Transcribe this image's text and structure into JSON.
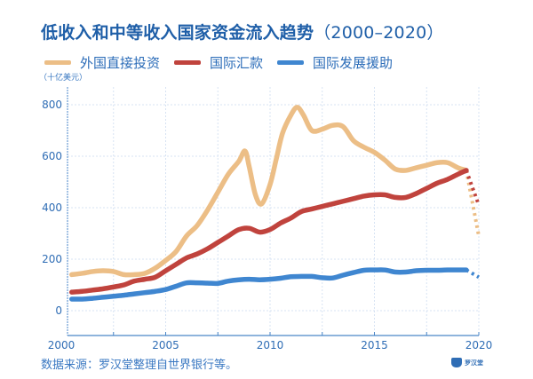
{
  "chart_data": {
    "type": "line",
    "title": "低收入和中等收入国家资金流入趋势（2000–2020）",
    "ylabel": "（十亿美元）",
    "xlabel": "",
    "xlim": [
      2000,
      2020
    ],
    "ylim": [
      -100,
      880
    ],
    "xticks": [
      2000,
      2005,
      2010,
      2015,
      2020
    ],
    "yticks": [
      0,
      200,
      400,
      600,
      800
    ],
    "grid": true,
    "legend_position": "top-left",
    "series": [
      {
        "name": "外国直接投资",
        "color": "#ecbe86",
        "x": [
          2000.5,
          2001,
          2001.5,
          2002,
          2002.5,
          2003,
          2003.5,
          2004,
          2004.5,
          2005,
          2005.5,
          2006,
          2006.5,
          2007,
          2007.5,
          2008,
          2008.5,
          2008.8,
          2009,
          2009.3,
          2009.6,
          2010,
          2010.3,
          2010.6,
          2011,
          2011.3,
          2011.6,
          2012,
          2012.5,
          2013,
          2013.5,
          2014,
          2014.5,
          2015,
          2015.5,
          2016,
          2016.5,
          2017,
          2017.5,
          2018,
          2018.5,
          2019,
          2019.4
        ],
        "values": [
          140,
          145,
          152,
          155,
          152,
          140,
          140,
          145,
          165,
          195,
          230,
          290,
          330,
          390,
          460,
          530,
          580,
          620,
          560,
          450,
          415,
          490,
          590,
          690,
          760,
          790,
          760,
          700,
          705,
          720,
          715,
          660,
          635,
          615,
          585,
          550,
          545,
          555,
          565,
          575,
          575,
          555,
          545
        ],
        "projection": {
          "x": [
            2019.4,
            2020
          ],
          "values": [
            545,
            290
          ]
        }
      },
      {
        "name": "国际汇款",
        "color": "#c0433d",
        "x": [
          2000.5,
          2001,
          2001.5,
          2002,
          2002.5,
          2003,
          2003.5,
          2004,
          2004.5,
          2005,
          2005.5,
          2006,
          2006.5,
          2007,
          2007.5,
          2008,
          2008.5,
          2009,
          2009.5,
          2010,
          2010.5,
          2011,
          2011.5,
          2012,
          2012.5,
          2013,
          2013.5,
          2014,
          2014.5,
          2015,
          2015.5,
          2016,
          2016.5,
          2017,
          2017.5,
          2018,
          2018.5,
          2019,
          2019.4
        ],
        "values": [
          72,
          75,
          80,
          85,
          92,
          100,
          115,
          122,
          130,
          155,
          180,
          205,
          220,
          240,
          265,
          290,
          315,
          320,
          305,
          315,
          340,
          360,
          385,
          395,
          405,
          415,
          425,
          435,
          445,
          450,
          450,
          440,
          440,
          455,
          475,
          495,
          510,
          530,
          545
        ],
        "projection": {
          "x": [
            2019.4,
            2020
          ],
          "values": [
            545,
            410
          ]
        }
      },
      {
        "name": "国际发展援助",
        "color": "#3f86d0",
        "x": [
          2000.5,
          2001,
          2001.5,
          2002,
          2002.5,
          2003,
          2003.5,
          2004,
          2004.5,
          2005,
          2005.5,
          2006,
          2006.5,
          2007,
          2007.5,
          2008,
          2008.5,
          2009,
          2009.5,
          2010,
          2010.5,
          2011,
          2011.5,
          2012,
          2012.5,
          2013,
          2013.5,
          2014,
          2014.5,
          2015,
          2015.5,
          2016,
          2016.5,
          2017,
          2017.5,
          2018,
          2018.5,
          2019,
          2019.4
        ],
        "values": [
          45,
          45,
          48,
          52,
          56,
          60,
          65,
          70,
          75,
          82,
          95,
          108,
          108,
          107,
          106,
          115,
          120,
          122,
          120,
          122,
          126,
          132,
          133,
          133,
          128,
          127,
          138,
          148,
          157,
          158,
          158,
          150,
          150,
          155,
          157,
          157,
          158,
          158,
          158
        ],
        "projection": {
          "x": [
            2019.4,
            2020
          ],
          "values": [
            158,
            130
          ]
        }
      }
    ]
  },
  "header": {
    "title_main": "低收入和中等收入国家资金流入趋势",
    "title_years": "（2000–2020）"
  },
  "legend": [
    {
      "label": "外国直接投资",
      "color": "#ecbe86"
    },
    {
      "label": "国际汇款",
      "color": "#c0433d"
    },
    {
      "label": "国际发展援助",
      "color": "#3f86d0"
    }
  ],
  "unit_label": "（十亿美元）",
  "source": "数据来源：罗汉堂整理自世界银行等。",
  "logo": {
    "text": "罗汉堂"
  }
}
